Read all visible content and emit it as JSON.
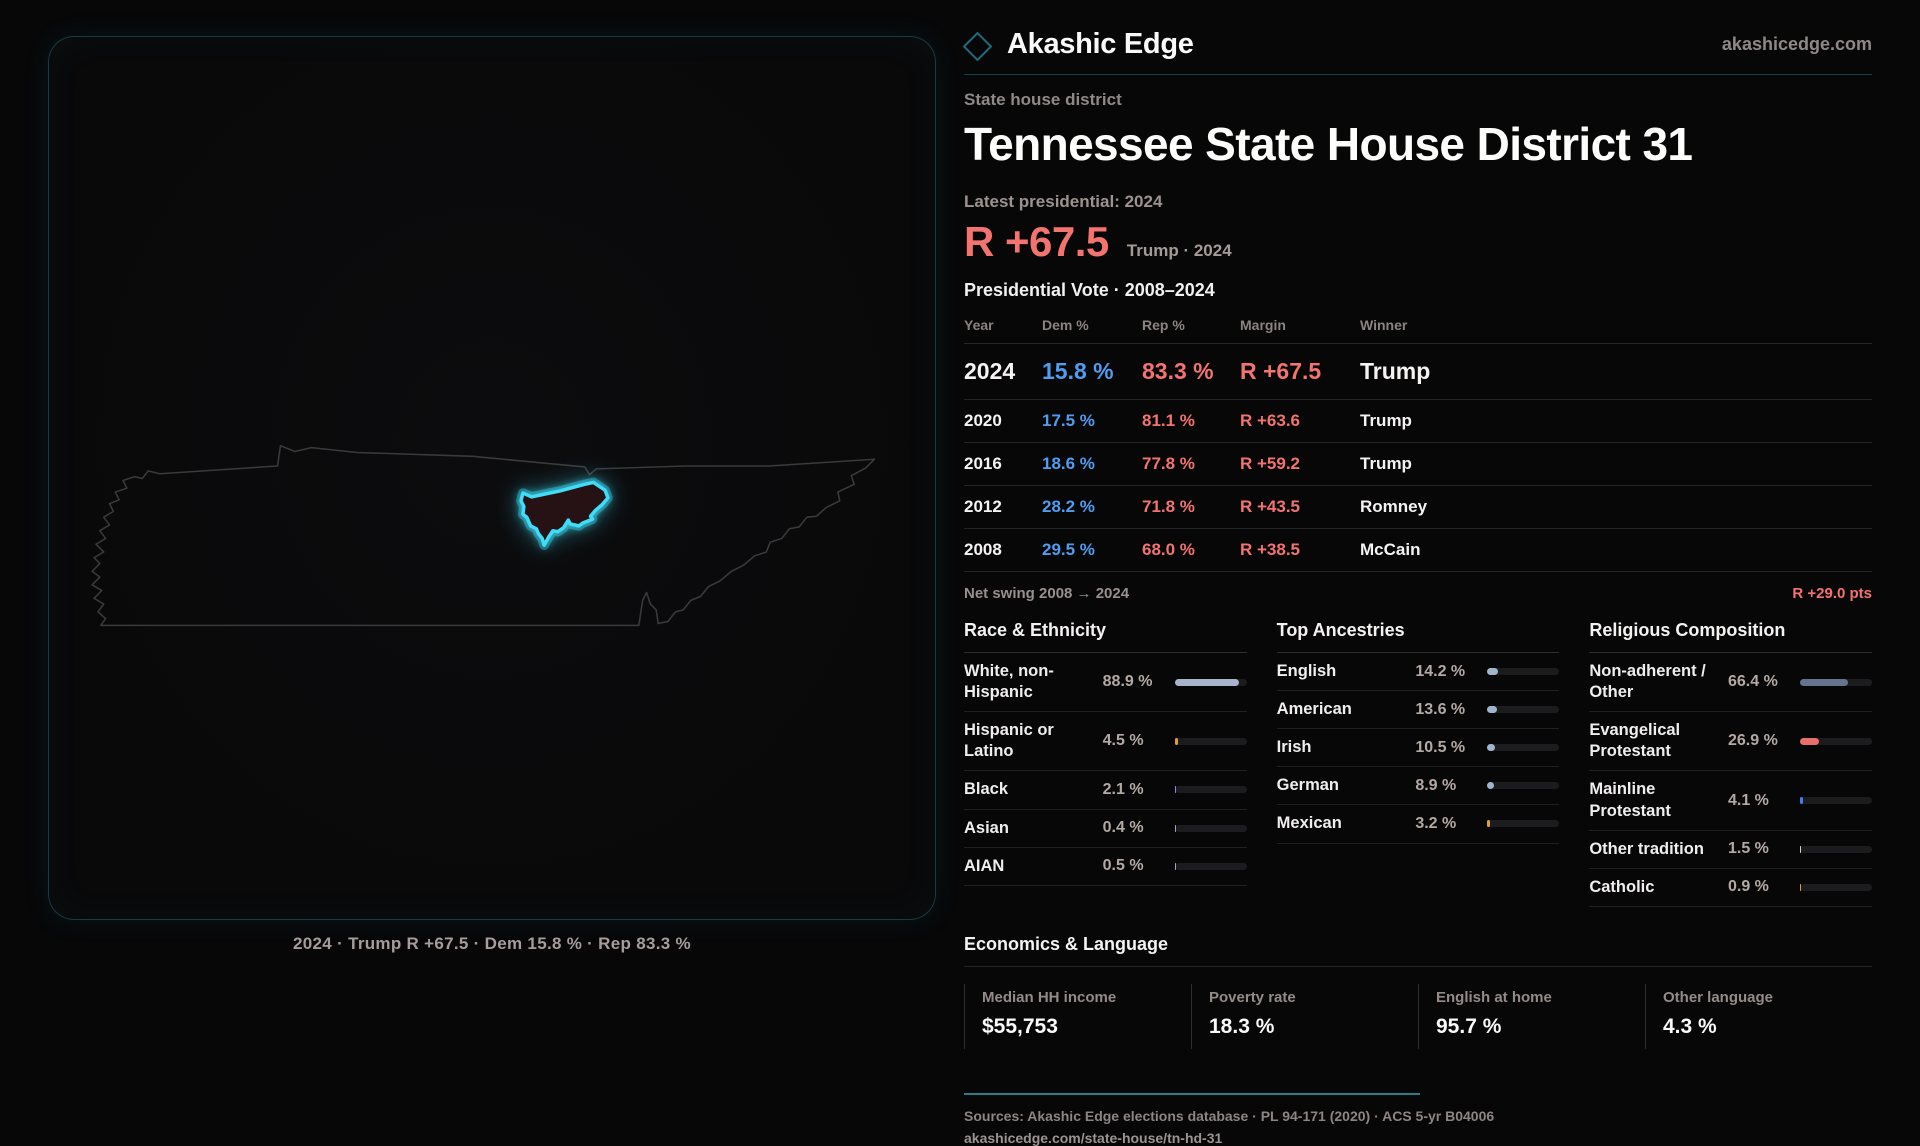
{
  "brand": {
    "name": "Akashic Edge",
    "site": "akashicedge.com"
  },
  "page": {
    "kicker": "State house district",
    "title": "Tennessee State House District 31",
    "latest_label": "Latest presidential: 2024",
    "margin_big": "R +67.5",
    "margin_context": "Trump · 2024",
    "table_title": "Presidential Vote · 2008–2024"
  },
  "map": {
    "caption": "2024 · Trump R +67.5 · Dem 15.8 % · Rep 83.3 %",
    "state": "Tennessee",
    "district": "District 31"
  },
  "election_table": {
    "columns": {
      "year": "Year",
      "dem": "Dem %",
      "rep": "Rep %",
      "margin": "Margin",
      "winner": "Winner"
    },
    "rows": [
      {
        "year": "2024",
        "dem": "15.8 %",
        "rep": "83.3 %",
        "margin": "R +67.5",
        "winner": "Trump"
      },
      {
        "year": "2020",
        "dem": "17.5 %",
        "rep": "81.1 %",
        "margin": "R +63.6",
        "winner": "Trump"
      },
      {
        "year": "2016",
        "dem": "18.6 %",
        "rep": "77.8 %",
        "margin": "R +59.2",
        "winner": "Trump"
      },
      {
        "year": "2012",
        "dem": "28.2 %",
        "rep": "71.8 %",
        "margin": "R +43.5",
        "winner": "Romney"
      },
      {
        "year": "2008",
        "dem": "29.5 %",
        "rep": "68.0 %",
        "margin": "R +38.5",
        "winner": "McCain"
      }
    ],
    "featured_year": "2024"
  },
  "net_swing": {
    "label": "Net swing 2008 → 2024",
    "value": "R +29.0 pts"
  },
  "demographics": {
    "race": {
      "title": "Race & Ethnicity",
      "rows": [
        {
          "label": "White, non-Hispanic",
          "value": "88.9 %",
          "pct": 88.9,
          "color": "#a7b4c9"
        },
        {
          "label": "Hispanic or Latino",
          "value": "4.5 %",
          "pct": 4.5,
          "color": "#e09b3a"
        },
        {
          "label": "Black",
          "value": "2.1 %",
          "pct": 2.1,
          "color": "#8b87f2"
        },
        {
          "label": "Asian",
          "value": "0.4 %",
          "pct": 0.4,
          "color": "#9aa8bf"
        },
        {
          "label": "AIAN",
          "value": "0.5 %",
          "pct": 0.5,
          "color": "#9aa8bf"
        }
      ]
    },
    "ancestries": {
      "title": "Top Ancestries",
      "rows": [
        {
          "label": "English",
          "value": "14.2 %",
          "pct": 14.2,
          "color": "#9fb4cf"
        },
        {
          "label": "American",
          "value": "13.6 %",
          "pct": 13.6,
          "color": "#9fb4cf"
        },
        {
          "label": "Irish",
          "value": "10.5 %",
          "pct": 10.5,
          "color": "#9fb4cf"
        },
        {
          "label": "German",
          "value": "8.9 %",
          "pct": 8.9,
          "color": "#9fb4cf"
        },
        {
          "label": "Mexican",
          "value": "3.2 %",
          "pct": 3.2,
          "color": "#e09b3a"
        }
      ]
    },
    "religion": {
      "title": "Religious Composition",
      "rows": [
        {
          "label": "Non-adherent / Other",
          "value": "66.4 %",
          "pct": 66.4,
          "color": "#64748f"
        },
        {
          "label": "Evangelical Protestant",
          "value": "26.9 %",
          "pct": 26.9,
          "color": "#e66f6b"
        },
        {
          "label": "Mainline Protestant",
          "value": "4.1 %",
          "pct": 4.1,
          "color": "#3d7ff0"
        },
        {
          "label": "Other tradition",
          "value": "1.5 %",
          "pct": 1.5,
          "color": "#cfcfd4"
        },
        {
          "label": "Catholic",
          "value": "0.9 %",
          "pct": 0.9,
          "color": "#d9a13c"
        }
      ]
    }
  },
  "economics": {
    "title": "Economics & Language",
    "stats": [
      {
        "label": "Median HH income",
        "value": "$55,753"
      },
      {
        "label": "Poverty rate",
        "value": "18.3 %"
      },
      {
        "label": "English at home",
        "value": "95.7 %"
      },
      {
        "label": "Other language",
        "value": "4.3 %"
      }
    ]
  },
  "footer": {
    "sources": "Sources: Akashic Edge elections database · PL 94-171 (2020) · ACS 5-yr B04006",
    "url": "akashicedge.com/state-house/tn-hd-31"
  }
}
